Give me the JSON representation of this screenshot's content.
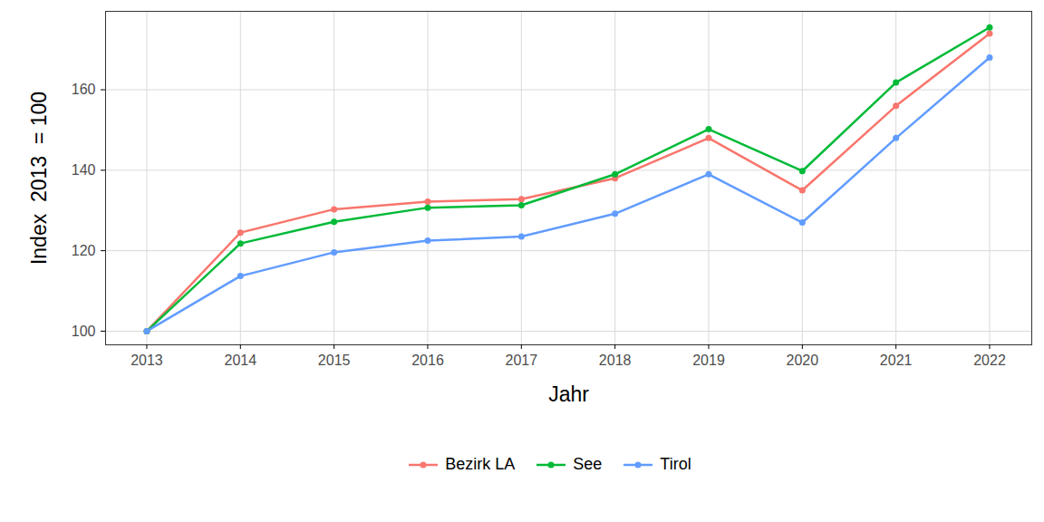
{
  "chart_data": {
    "type": "line",
    "x_label": "Jahr",
    "y_label": "Index  2013  = 100",
    "x": [
      2013,
      2014,
      2015,
      2016,
      2017,
      2018,
      2019,
      2020,
      2021,
      2022
    ],
    "series": [
      {
        "name": "Bezirk LA",
        "color": "#F8766D",
        "values": [
          100,
          124.5,
          130.3,
          132.2,
          132.8,
          138,
          148,
          135,
          156,
          174
        ]
      },
      {
        "name": "See",
        "color": "#00BA38",
        "values": [
          100,
          121.8,
          127.2,
          130.7,
          131.3,
          139,
          150.2,
          139.8,
          161.8,
          175.5
        ]
      },
      {
        "name": "Tirol",
        "color": "#619CFF",
        "values": [
          100,
          113.7,
          119.6,
          122.5,
          123.5,
          129.2,
          139,
          127,
          148,
          168
        ]
      }
    ],
    "xlim": [
      2012.56,
      2022.45
    ],
    "xticks": [
      2013,
      2014,
      2015,
      2016,
      2017,
      2018,
      2019,
      2020,
      2021,
      2022
    ],
    "ylim": [
      96.6,
      179.5
    ],
    "yticks": [
      100,
      120,
      140,
      160
    ],
    "grid": true,
    "legend": "bottom",
    "marker": "circle"
  }
}
